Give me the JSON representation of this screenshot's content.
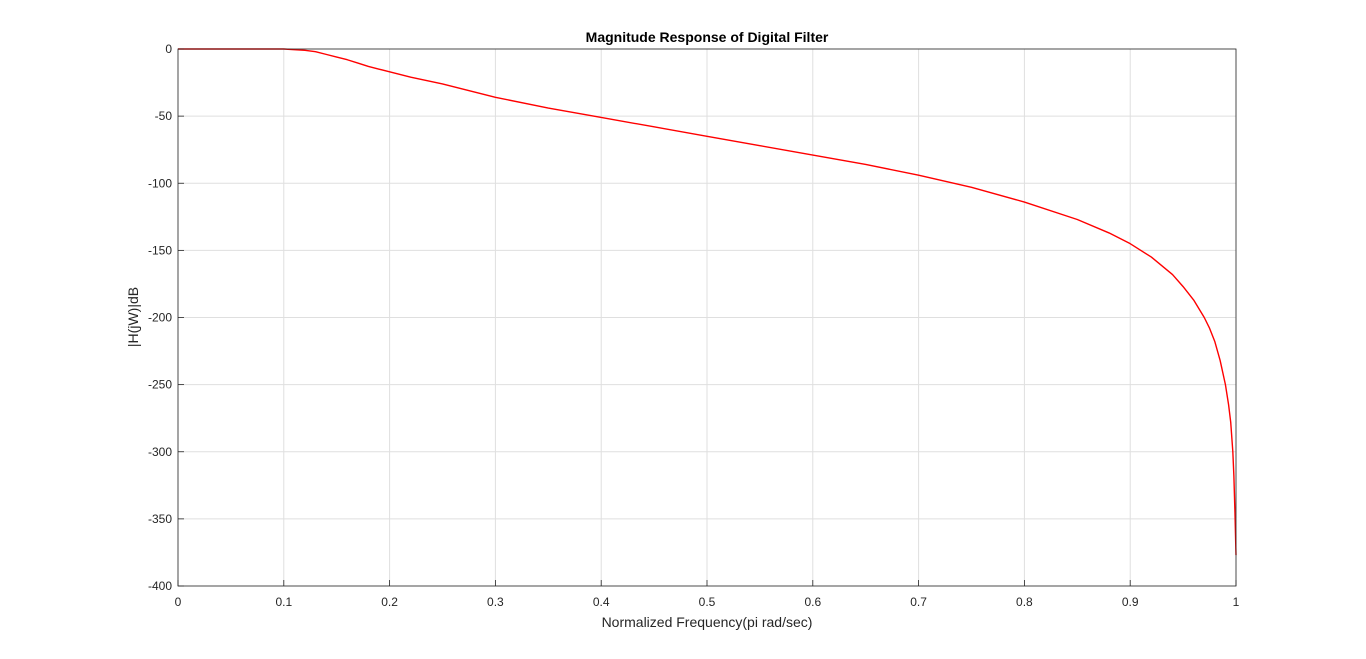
{
  "chart_data": {
    "type": "line",
    "title": "Magnitude Response of Digital Filter",
    "xlabel": "Normalized Frequency(pi rad/sec)",
    "ylabel": "|H(jW)|dB",
    "xlim": [
      0,
      1
    ],
    "ylim": [
      -400,
      0
    ],
    "xticks": [
      "0",
      "0.1",
      "0.2",
      "0.3",
      "0.4",
      "0.5",
      "0.6",
      "0.7",
      "0.8",
      "0.9",
      "1"
    ],
    "yticks": [
      "0",
      "-50",
      "-100",
      "-150",
      "-200",
      "-250",
      "-300",
      "-350",
      "-400"
    ],
    "grid": true,
    "series": [
      {
        "color": "#ff0000",
        "x": [
          0,
          0.05,
          0.1,
          0.11,
          0.12,
          0.13,
          0.14,
          0.15,
          0.16,
          0.17,
          0.18,
          0.19,
          0.2,
          0.22,
          0.25,
          0.3,
          0.35,
          0.4,
          0.45,
          0.5,
          0.55,
          0.6,
          0.65,
          0.7,
          0.75,
          0.8,
          0.85,
          0.88,
          0.9,
          0.92,
          0.94,
          0.95,
          0.96,
          0.97,
          0.975,
          0.98,
          0.985,
          0.99,
          0.993,
          0.995,
          0.997,
          0.998,
          0.999,
          1.0
        ],
        "y": [
          0,
          0,
          0,
          -0.5,
          -1,
          -2,
          -4,
          -6,
          -8,
          -10.5,
          -13,
          -15,
          -17,
          -21,
          -26,
          -36,
          -44,
          -51,
          -58,
          -65,
          -72,
          -79,
          -86,
          -94,
          -103,
          -114,
          -127,
          -137,
          -145,
          -155,
          -168,
          -177,
          -187,
          -200,
          -208,
          -218,
          -232,
          -250,
          -265,
          -278,
          -300,
          -318,
          -345,
          -377
        ]
      }
    ]
  }
}
